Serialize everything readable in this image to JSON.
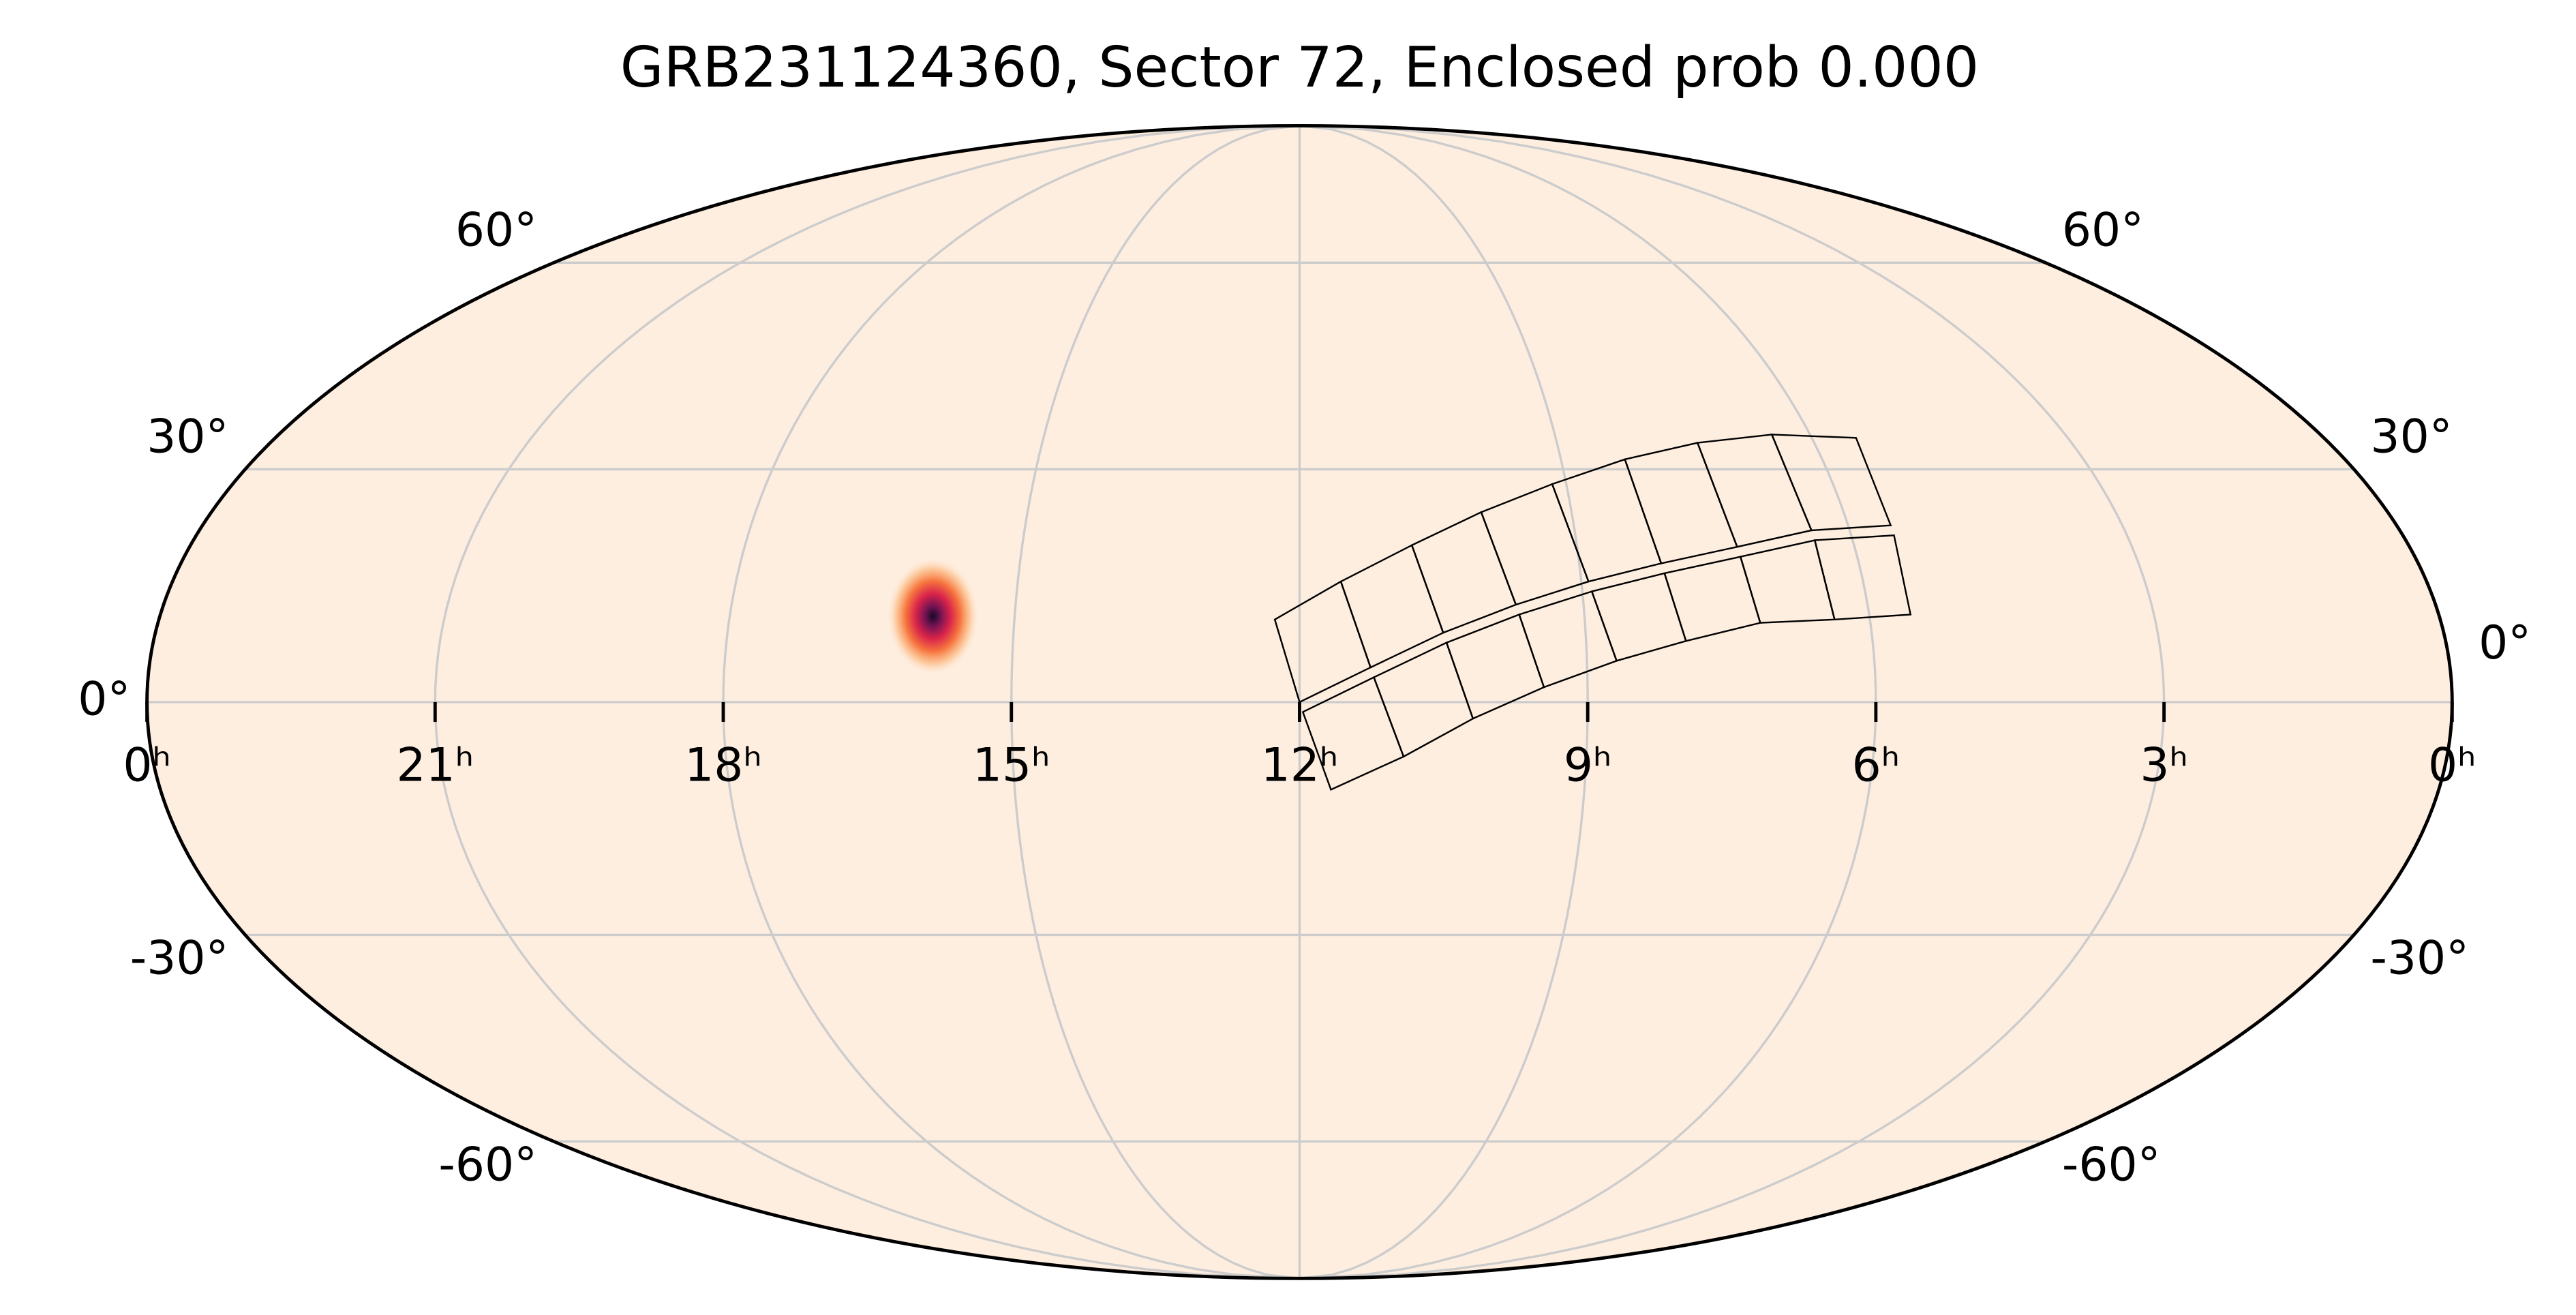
{
  "chart_data": {
    "type": "skymap",
    "projection": "mollweide",
    "title": "GRB231124360, Sector 72, Enclosed prob 0.000",
    "xlim": [
      24,
      0
    ],
    "xticks": [
      {
        "value": 24,
        "label": "0ʰ"
      },
      {
        "value": 21,
        "label": "21ʰ"
      },
      {
        "value": 18,
        "label": "18ʰ"
      },
      {
        "value": 15,
        "label": "15ʰ"
      },
      {
        "value": 12,
        "label": "12ʰ"
      },
      {
        "value": 9,
        "label": "9ʰ"
      },
      {
        "value": 6,
        "label": "6ʰ"
      },
      {
        "value": 3,
        "label": "3ʰ"
      },
      {
        "value": 0,
        "label": "0ʰ"
      }
    ],
    "ylim": [
      -90,
      90
    ],
    "yticks": [
      {
        "value": -60,
        "label": "-60°"
      },
      {
        "value": -30,
        "label": "-30°"
      },
      {
        "value": 0,
        "label": "0°"
      },
      {
        "value": 30,
        "label": "30°"
      },
      {
        "value": 60,
        "label": "60°"
      }
    ],
    "grid": true,
    "grid_color": "#cccccc",
    "background": "#feeee0",
    "source": {
      "ra": 15.86,
      "dec": 10.9
    }
  }
}
